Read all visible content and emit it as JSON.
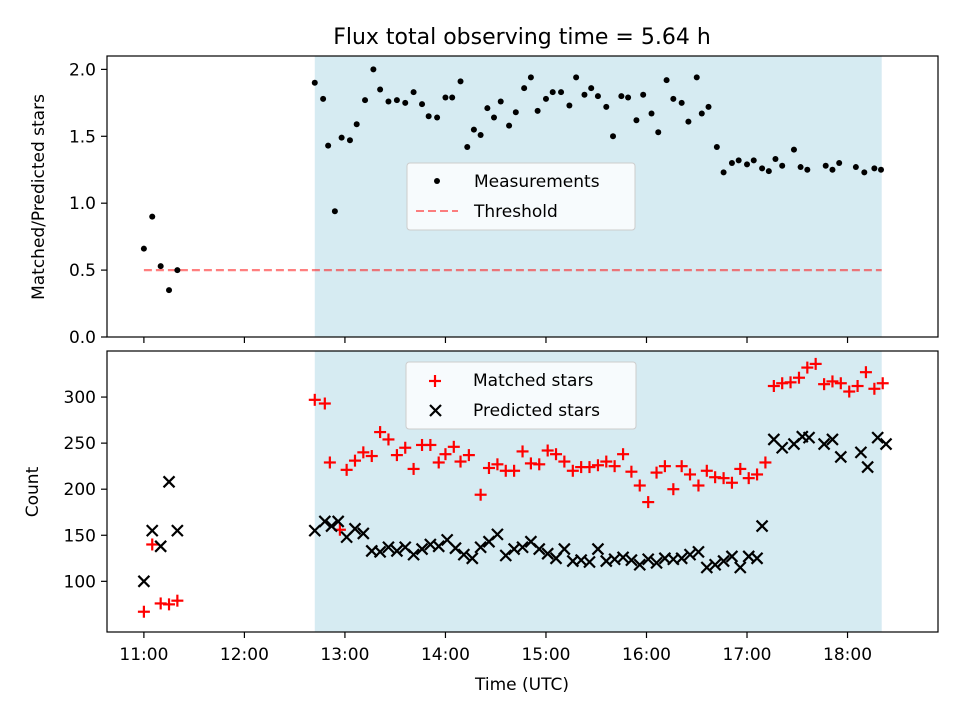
{
  "chart_data": {
    "type": "scatter",
    "title": "Flux total observing time = 5.64 h",
    "xlabel": "Time (UTC)",
    "x_unit": "hours UTC",
    "x_range": [
      10.633,
      18.9
    ],
    "x_ticks": [
      {
        "value": 11,
        "label": "11:00"
      },
      {
        "value": 12,
        "label": "12:00"
      },
      {
        "value": 13,
        "label": "13:00"
      },
      {
        "value": 14,
        "label": "14:00"
      },
      {
        "value": 15,
        "label": "15:00"
      },
      {
        "value": 16,
        "label": "16:00"
      },
      {
        "value": 17,
        "label": "17:00"
      },
      {
        "value": 18,
        "label": "18:00"
      }
    ],
    "observing_window": {
      "start": 12.7,
      "end": 18.34,
      "color": "#add8e6",
      "opacity": 0.5
    },
    "panels": [
      {
        "ylabel": "Matched/Predicted stars",
        "ylim": [
          0.0,
          2.1
        ],
        "yticks": [
          {
            "value": 0.0,
            "label": "0.0"
          },
          {
            "value": 0.5,
            "label": "0.5"
          },
          {
            "value": 1.0,
            "label": "1.0"
          },
          {
            "value": 1.5,
            "label": "1.5"
          },
          {
            "value": 2.0,
            "label": "2.0"
          }
        ],
        "legend": {
          "location": "center",
          "entries": [
            "Measurements",
            "Threshold"
          ]
        },
        "threshold": {
          "name": "Threshold",
          "value": 0.5,
          "x_start": 11.0,
          "x_end": 18.34,
          "color": "#ff0000",
          "opacity": 0.5,
          "style": "dashed"
        },
        "series": [
          {
            "name": "Measurements",
            "marker": "dot",
            "color": "#000000",
            "x": [
              11.0,
              11.083,
              11.167,
              11.25,
              11.333,
              12.7,
              12.783,
              12.833,
              12.9,
              12.967,
              13.05,
              13.117,
              13.2,
              13.283,
              13.35,
              13.433,
              13.517,
              13.6,
              13.683,
              13.767,
              13.833,
              13.917,
              14.0,
              14.067,
              14.15,
              14.217,
              14.283,
              14.35,
              14.417,
              14.483,
              14.55,
              14.633,
              14.7,
              14.783,
              14.85,
              14.917,
              15.0,
              15.067,
              15.15,
              15.233,
              15.3,
              15.383,
              15.45,
              15.517,
              15.6,
              15.667,
              15.75,
              15.817,
              15.9,
              15.967,
              16.05,
              16.117,
              16.2,
              16.267,
              16.35,
              16.417,
              16.5,
              16.55,
              16.617,
              16.7,
              16.767,
              16.85,
              16.917,
              17.0,
              17.067,
              17.15,
              17.217,
              17.283,
              17.35,
              17.467,
              17.533,
              17.6,
              17.783,
              17.85,
              17.917,
              18.083,
              18.167,
              18.267,
              18.333
            ],
            "y": [
              0.66,
              0.9,
              0.53,
              0.35,
              0.5,
              1.9,
              1.78,
              1.43,
              0.94,
              1.49,
              1.47,
              1.59,
              1.77,
              2.0,
              1.85,
              1.76,
              1.77,
              1.75,
              1.83,
              1.74,
              1.65,
              1.64,
              1.79,
              1.79,
              1.91,
              1.42,
              1.55,
              1.51,
              1.71,
              1.64,
              1.76,
              1.58,
              1.68,
              1.86,
              1.94,
              1.69,
              1.78,
              1.83,
              1.83,
              1.73,
              1.94,
              1.81,
              1.86,
              1.8,
              1.72,
              1.5,
              1.8,
              1.79,
              1.62,
              1.81,
              1.67,
              1.53,
              1.92,
              1.78,
              1.75,
              1.61,
              1.94,
              1.67,
              1.72,
              1.42,
              1.23,
              1.3,
              1.32,
              1.29,
              1.32,
              1.26,
              1.24,
              1.33,
              1.28,
              1.4,
              1.27,
              1.25,
              1.28,
              1.25,
              1.3,
              1.27,
              1.23,
              1.26,
              1.25
            ]
          }
        ]
      },
      {
        "ylabel": "Count",
        "ylim": [
          45,
          350
        ],
        "yticks": [
          {
            "value": 100,
            "label": "100"
          },
          {
            "value": 150,
            "label": "150"
          },
          {
            "value": 200,
            "label": "200"
          },
          {
            "value": 250,
            "label": "250"
          },
          {
            "value": 300,
            "label": "300"
          }
        ],
        "legend": {
          "location": "upper center",
          "entries": [
            "Matched stars",
            "Predicted stars"
          ]
        },
        "series": [
          {
            "name": "Matched stars",
            "marker": "plus",
            "color": "#ff0000",
            "x": [
              11.0,
              11.083,
              11.167,
              11.25,
              11.333,
              12.7,
              12.8,
              12.85,
              12.95,
              13.017,
              13.1,
              13.183,
              13.267,
              13.35,
              13.433,
              13.517,
              13.6,
              13.683,
              13.767,
              13.85,
              13.933,
              14.0,
              14.083,
              14.15,
              14.233,
              14.35,
              14.433,
              14.517,
              14.6,
              14.683,
              14.767,
              14.85,
              14.933,
              15.017,
              15.1,
              15.183,
              15.267,
              15.35,
              15.433,
              15.517,
              15.6,
              15.683,
              15.767,
              15.85,
              15.933,
              16.017,
              16.1,
              16.183,
              16.267,
              16.35,
              16.433,
              16.517,
              16.6,
              16.683,
              16.767,
              16.85,
              16.933,
              17.017,
              17.1,
              17.183,
              17.267,
              17.35,
              17.433,
              17.517,
              17.6,
              17.683,
              17.767,
              17.85,
              17.933,
              18.017,
              18.1,
              18.183,
              18.267,
              18.35
            ],
            "y": [
              67,
              140,
              76,
              75,
              79,
              297,
              293,
              229,
              156,
              221,
              231,
              240,
              236,
              262,
              254,
              237,
              245,
              222,
              248,
              248,
              229,
              238,
              246,
              230,
              237,
              194,
              223,
              227,
              220,
              220,
              241,
              228,
              227,
              242,
              238,
              230,
              220,
              224,
              224,
              226,
              230,
              225,
              238,
              219,
              204,
              186,
              218,
              225,
              200,
              225,
              216,
              204,
              220,
              213,
              212,
              207,
              222,
              212,
              216,
              229,
              312,
              315,
              316,
              321,
              332,
              336,
              314,
              317,
              315,
              306,
              312,
              327,
              309,
              315
            ],
            "note": "subset of visible markers"
          },
          {
            "name": "Predicted stars",
            "marker": "x",
            "color": "#000000",
            "x": [
              11.0,
              11.083,
              11.167,
              11.25,
              11.333,
              12.7,
              12.8,
              12.867,
              12.933,
              13.017,
              13.1,
              13.183,
              13.267,
              13.35,
              13.433,
              13.517,
              13.6,
              13.683,
              13.767,
              13.85,
              13.933,
              14.017,
              14.1,
              14.183,
              14.267,
              14.35,
              14.433,
              14.517,
              14.6,
              14.683,
              14.767,
              14.85,
              14.933,
              15.017,
              15.1,
              15.183,
              15.267,
              15.35,
              15.433,
              15.517,
              15.6,
              15.683,
              15.767,
              15.85,
              15.933,
              16.017,
              16.1,
              16.183,
              16.267,
              16.35,
              16.433,
              16.517,
              16.6,
              16.683,
              16.767,
              16.85,
              16.933,
              17.017,
              17.1,
              17.15,
              17.267,
              17.35,
              17.467,
              17.55,
              17.617,
              17.767,
              17.85,
              17.933,
              18.133,
              18.2,
              18.3,
              18.383
            ],
            "y": [
              100,
              155,
              138,
              208,
              155,
              155,
              165,
              160,
              165,
              148,
              157,
              152,
              133,
              132,
              137,
              133,
              137,
              129,
              135,
              140,
              138,
              145,
              136,
              129,
              125,
              137,
              143,
              151,
              128,
              135,
              137,
              143,
              135,
              130,
              125,
              135,
              122,
              123,
              121,
              135,
              122,
              124,
              126,
              123,
              118,
              124,
              120,
              125,
              124,
              125,
              129,
              132,
              115,
              118,
              122,
              127,
              115,
              127,
              125,
              160,
              254,
              245,
              249,
              257,
              256,
              249,
              254,
              235,
              240,
              224,
              256,
              249
            ]
          }
        ]
      }
    ]
  }
}
